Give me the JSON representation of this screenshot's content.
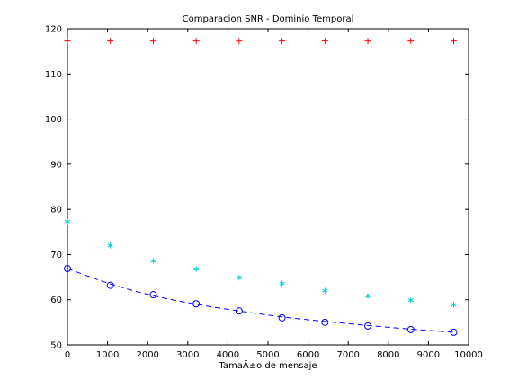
{
  "chart_data": {
    "type": "scatter",
    "title": "Comparacion SNR  - Dominio Temporal",
    "xlabel": "TamaÃ±o de mensaje",
    "ylabel": "",
    "xlim": [
      0,
      10000
    ],
    "ylim": [
      50,
      120
    ],
    "xticks": [
      0,
      1000,
      2000,
      3000,
      4000,
      5000,
      6000,
      7000,
      8000,
      9000,
      10000
    ],
    "yticks": [
      50,
      60,
      70,
      80,
      90,
      100,
      110,
      120
    ],
    "grid": false,
    "legend": "none",
    "series": [
      {
        "marker": "plus",
        "color": "#ff0000",
        "line": "none",
        "x": [
          0,
          1070,
          2140,
          3210,
          4280,
          5350,
          6420,
          7490,
          8560,
          9630
        ],
        "y": [
          117.3,
          117.3,
          117.3,
          117.3,
          117.3,
          117.3,
          117.3,
          117.3,
          117.3,
          117.3
        ]
      },
      {
        "marker": "star",
        "color": "#00cccc",
        "line": "none",
        "x": [
          0,
          1070,
          2140,
          3210,
          4280,
          5350,
          6420,
          7490,
          8560,
          9630
        ],
        "y": [
          77.3,
          72.0,
          68.6,
          66.8,
          64.9,
          63.6,
          62.0,
          60.8,
          59.9,
          58.9
        ]
      },
      {
        "marker": "circle",
        "color": "#0000ff",
        "line": "none",
        "x": [
          0,
          1070,
          2140,
          3210,
          4280,
          5350,
          6420,
          7490,
          8560,
          9630
        ],
        "y": [
          66.9,
          63.2,
          61.1,
          59.1,
          57.5,
          56.0,
          55.0,
          54.2,
          53.4,
          52.8
        ]
      },
      {
        "marker": "none",
        "color": "#0000ff",
        "line": "dashed",
        "x": [
          0,
          1070,
          2140,
          3210,
          4280,
          5350,
          6420,
          7490,
          8560,
          9630
        ],
        "y": [
          66.9,
          63.5,
          60.9,
          59.0,
          57.5,
          56.2,
          55.2,
          54.3,
          53.5,
          52.8
        ]
      }
    ]
  }
}
